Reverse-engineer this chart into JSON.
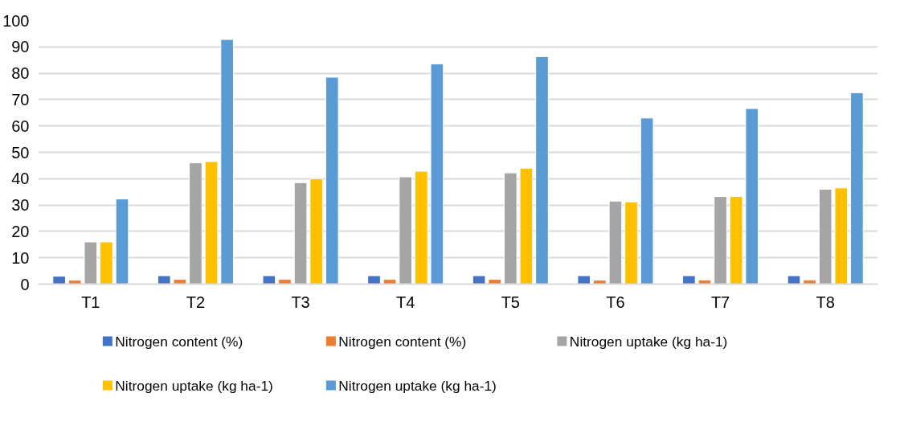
{
  "chart_data": {
    "type": "bar",
    "categories": [
      "T1",
      "T2",
      "T3",
      "T4",
      "T5",
      "T6",
      "T7",
      "T8"
    ],
    "series": [
      {
        "name": "Nitrogen content (%)",
        "color": "#4472c4",
        "values": [
          3.0,
          3.2,
          3.2,
          3.2,
          3.2,
          3.2,
          3.2,
          3.2
        ]
      },
      {
        "name": "Nitrogen content (%)",
        "color": "#ed7d31",
        "values": [
          1.5,
          1.8,
          1.8,
          1.8,
          1.8,
          1.5,
          1.6,
          1.6
        ]
      },
      {
        "name": "Nitrogen uptake (kg ha-1)",
        "color": "#a5a5a5",
        "values": [
          16,
          46,
          38.5,
          40.7,
          42.2,
          31.5,
          33.2,
          36
        ]
      },
      {
        "name": "Nitrogen uptake (kg ha-1)",
        "color": "#ffc000",
        "values": [
          16,
          46.5,
          40,
          42.8,
          44,
          31.2,
          33.2,
          36.5
        ]
      },
      {
        "name": "Nitrogen uptake (kg ha-1)",
        "color": "#5b9bd5",
        "values": [
          32.3,
          92.8,
          78.5,
          83.5,
          86.3,
          63,
          66.6,
          72.6
        ]
      }
    ],
    "ylim": [
      0,
      100
    ],
    "yticks": [
      0,
      10,
      20,
      30,
      40,
      50,
      60,
      70,
      80,
      90,
      100
    ],
    "grid": "y",
    "legend": "bottom"
  }
}
